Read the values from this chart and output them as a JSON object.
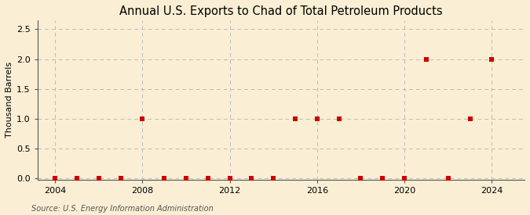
{
  "title": "Annual U.S. Exports to Chad of Total Petroleum Products",
  "ylabel": "Thousand Barrels",
  "source_text": "Source: U.S. Energy Information Administration",
  "background_color": "#faefd4",
  "plot_bg_color": "#faefd4",
  "years": [
    2004,
    2005,
    2006,
    2007,
    2008,
    2009,
    2010,
    2011,
    2012,
    2013,
    2014,
    2015,
    2016,
    2017,
    2018,
    2019,
    2020,
    2021,
    2022,
    2023,
    2024
  ],
  "values": [
    0,
    0,
    0,
    0,
    1,
    0,
    0,
    0,
    0,
    0,
    0,
    1,
    1,
    1,
    0,
    0,
    0,
    2,
    0,
    1,
    2
  ],
  "marker_color": "#cc0000",
  "marker_size": 16,
  "xlim": [
    2003.2,
    2025.5
  ],
  "ylim": [
    -0.02,
    2.65
  ],
  "yticks": [
    0.0,
    0.5,
    1.0,
    1.5,
    2.0,
    2.5
  ],
  "xticks": [
    2004,
    2008,
    2012,
    2016,
    2020,
    2024
  ],
  "grid_color": "#bbbbbb",
  "title_fontsize": 10.5,
  "axis_fontsize": 8,
  "tick_fontsize": 8,
  "source_fontsize": 7
}
